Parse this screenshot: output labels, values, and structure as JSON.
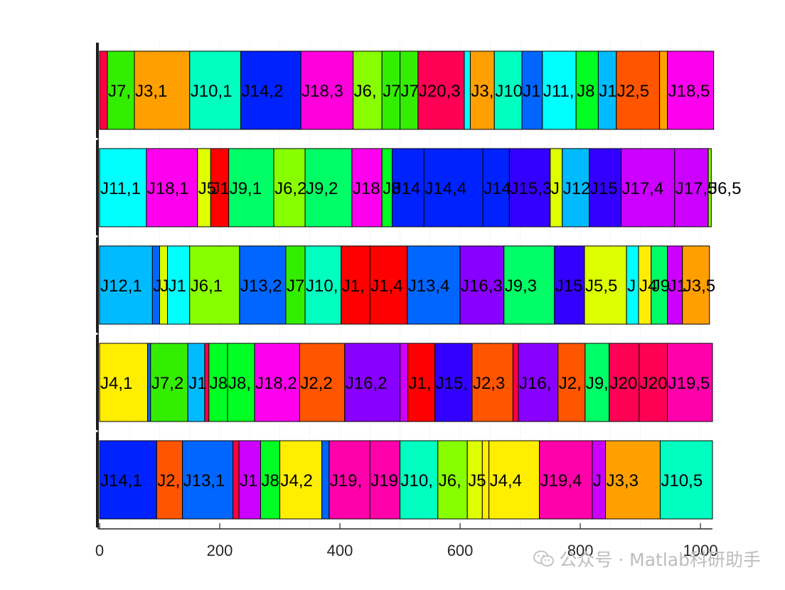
{
  "chart_data": {
    "type": "gantt",
    "xlim": [
      0,
      1020
    ],
    "x_ticks": [
      0,
      200,
      400,
      600,
      800,
      1000
    ],
    "x_tick_labels": [
      "0",
      "200",
      "400",
      "600",
      "800",
      "1000"
    ],
    "rows": [
      {
        "index": 1,
        "tasks": [
          {
            "label": "",
            "start": 0,
            "end": 13,
            "color": "#ff0044"
          },
          {
            "label": "J7,",
            "start": 13,
            "end": 58,
            "color": "#33ee00"
          },
          {
            "label": "J3,1",
            "start": 58,
            "end": 150,
            "color": "#ffa000"
          },
          {
            "label": "J10,1",
            "start": 150,
            "end": 235,
            "color": "#00ffc0"
          },
          {
            "label": "J14,2",
            "start": 235,
            "end": 335,
            "color": "#0022ff"
          },
          {
            "label": "J18,3",
            "start": 335,
            "end": 422,
            "color": "#ff00dd"
          },
          {
            "label": "J6,",
            "start": 422,
            "end": 470,
            "color": "#88ff00"
          },
          {
            "label": "J7",
            "start": 470,
            "end": 500,
            "color": "#33ee00"
          },
          {
            "label": "J7",
            "start": 500,
            "end": 530,
            "color": "#33ee00"
          },
          {
            "label": "J20,3",
            "start": 530,
            "end": 607,
            "color": "#ff0055"
          },
          {
            "label": "",
            "start": 607,
            "end": 617,
            "color": "#00ffff"
          },
          {
            "label": "J3,",
            "start": 617,
            "end": 657,
            "color": "#ffa000"
          },
          {
            "label": "J10",
            "start": 657,
            "end": 703,
            "color": "#00ffc0"
          },
          {
            "label": "J1",
            "start": 703,
            "end": 737,
            "color": "#0066ff"
          },
          {
            "label": "J11,",
            "start": 737,
            "end": 793,
            "color": "#00ffff"
          },
          {
            "label": "J8",
            "start": 793,
            "end": 830,
            "color": "#00ff22"
          },
          {
            "label": "J1",
            "start": 830,
            "end": 860,
            "color": "#00bbff"
          },
          {
            "label": "J2,5",
            "start": 860,
            "end": 932,
            "color": "#ff5500"
          },
          {
            "label": "",
            "start": 932,
            "end": 945,
            "color": "#ffa000"
          },
          {
            "label": "J18,5",
            "start": 945,
            "end": 1022,
            "color": "#ff00ee"
          }
        ]
      },
      {
        "index": 2,
        "tasks": [
          {
            "label": "J11,1",
            "start": 0,
            "end": 78,
            "color": "#00ffff"
          },
          {
            "label": "J18,1",
            "start": 78,
            "end": 163,
            "color": "#ff00ee"
          },
          {
            "label": "J5",
            "start": 163,
            "end": 185,
            "color": "#ddff00"
          },
          {
            "label": "J1",
            "start": 185,
            "end": 215,
            "color": "#ff0000"
          },
          {
            "label": "J9,1",
            "start": 215,
            "end": 290,
            "color": "#00ff66"
          },
          {
            "label": "J6,2",
            "start": 290,
            "end": 342,
            "color": "#88ff00"
          },
          {
            "label": "J9,2",
            "start": 342,
            "end": 420,
            "color": "#00ff66"
          },
          {
            "label": "J18",
            "start": 420,
            "end": 470,
            "color": "#ff00ee"
          },
          {
            "label": "J8",
            "start": 470,
            "end": 487,
            "color": "#00ff22"
          },
          {
            "label": "J14",
            "start": 487,
            "end": 540,
            "color": "#0022ff"
          },
          {
            "label": "J14,4",
            "start": 540,
            "end": 638,
            "color": "#0022ff"
          },
          {
            "label": "J14",
            "start": 638,
            "end": 682,
            "color": "#0022ff"
          },
          {
            "label": "J15,3",
            "start": 682,
            "end": 750,
            "color": "#3300ff"
          },
          {
            "label": "J",
            "start": 750,
            "end": 770,
            "color": "#ddff00"
          },
          {
            "label": "J12",
            "start": 770,
            "end": 815,
            "color": "#00bbff"
          },
          {
            "label": "J15",
            "start": 815,
            "end": 868,
            "color": "#3300ff"
          },
          {
            "label": "J17,4",
            "start": 868,
            "end": 957,
            "color": "#cc00ff"
          },
          {
            "label": "J17,5",
            "start": 957,
            "end": 1013,
            "color": "#cc00ff"
          },
          {
            "label": "J6,5",
            "start": 1013,
            "end": 1018,
            "color": "#88ff00"
          }
        ]
      },
      {
        "index": 3,
        "tasks": [
          {
            "label": "J12,1",
            "start": 0,
            "end": 88,
            "color": "#00bbff"
          },
          {
            "label": "J",
            "start": 88,
            "end": 100,
            "color": "#0066ff"
          },
          {
            "label": "J",
            "start": 100,
            "end": 113,
            "color": "#ddff00"
          },
          {
            "label": "J1",
            "start": 113,
            "end": 150,
            "color": "#00ffff"
          },
          {
            "label": "J6,1",
            "start": 150,
            "end": 233,
            "color": "#88ff00"
          },
          {
            "label": "J13,2",
            "start": 233,
            "end": 310,
            "color": "#0066ff"
          },
          {
            "label": "J7",
            "start": 310,
            "end": 342,
            "color": "#33ee00"
          },
          {
            "label": "J10,",
            "start": 342,
            "end": 402,
            "color": "#00ffc0"
          },
          {
            "label": "J1,",
            "start": 402,
            "end": 450,
            "color": "#ff0000"
          },
          {
            "label": "J1,4",
            "start": 450,
            "end": 512,
            "color": "#ff0000"
          },
          {
            "label": "J13,4",
            "start": 512,
            "end": 600,
            "color": "#0066ff"
          },
          {
            "label": "J16,3",
            "start": 600,
            "end": 673,
            "color": "#8800ff"
          },
          {
            "label": "J9,3",
            "start": 673,
            "end": 757,
            "color": "#00ff66"
          },
          {
            "label": "J15",
            "start": 757,
            "end": 807,
            "color": "#3300ff"
          },
          {
            "label": "J5,5",
            "start": 807,
            "end": 877,
            "color": "#ddff00"
          },
          {
            "label": "J",
            "start": 877,
            "end": 897,
            "color": "#00ffff"
          },
          {
            "label": "J4",
            "start": 897,
            "end": 918,
            "color": "#ffee00"
          },
          {
            "label": "J9",
            "start": 918,
            "end": 945,
            "color": "#00ff66"
          },
          {
            "label": "J1",
            "start": 945,
            "end": 970,
            "color": "#cc00ff"
          },
          {
            "label": "J3,5",
            "start": 970,
            "end": 1015,
            "color": "#ffa000"
          }
        ]
      },
      {
        "index": 4,
        "tasks": [
          {
            "label": "J4,1",
            "start": 0,
            "end": 80,
            "color": "#ffee00"
          },
          {
            "label": "",
            "start": 80,
            "end": 85,
            "color": "#0066ff"
          },
          {
            "label": "J7,2",
            "start": 85,
            "end": 147,
            "color": "#33ee00"
          },
          {
            "label": "J1",
            "start": 147,
            "end": 175,
            "color": "#00bbff"
          },
          {
            "label": "",
            "start": 175,
            "end": 182,
            "color": "#ff0044"
          },
          {
            "label": "J8",
            "start": 182,
            "end": 213,
            "color": "#00ff22"
          },
          {
            "label": "J8,",
            "start": 213,
            "end": 258,
            "color": "#00ff22"
          },
          {
            "label": "J18,2",
            "start": 258,
            "end": 333,
            "color": "#ff00ee"
          },
          {
            "label": "J2,2",
            "start": 333,
            "end": 408,
            "color": "#ff5500"
          },
          {
            "label": "J16,2",
            "start": 408,
            "end": 500,
            "color": "#8800ff"
          },
          {
            "label": "",
            "start": 500,
            "end": 513,
            "color": "#cc00ff"
          },
          {
            "label": "J1,",
            "start": 513,
            "end": 558,
            "color": "#ff0000"
          },
          {
            "label": "J15,",
            "start": 558,
            "end": 620,
            "color": "#3300ff"
          },
          {
            "label": "J2,3",
            "start": 620,
            "end": 688,
            "color": "#ff5500"
          },
          {
            "label": "",
            "start": 688,
            "end": 697,
            "color": "#ff0044"
          },
          {
            "label": "J16,",
            "start": 697,
            "end": 763,
            "color": "#8800ff"
          },
          {
            "label": "J2,",
            "start": 763,
            "end": 808,
            "color": "#ff5500"
          },
          {
            "label": "J9,",
            "start": 808,
            "end": 848,
            "color": "#00ff66"
          },
          {
            "label": "J20",
            "start": 848,
            "end": 898,
            "color": "#ff0055"
          },
          {
            "label": "J20",
            "start": 898,
            "end": 945,
            "color": "#ff0055"
          },
          {
            "label": "J19,5",
            "start": 945,
            "end": 1020,
            "color": "#ff00aa"
          }
        ]
      },
      {
        "index": 5,
        "tasks": [
          {
            "label": "J14,1",
            "start": 0,
            "end": 95,
            "color": "#0022ff"
          },
          {
            "label": "J2,",
            "start": 95,
            "end": 138,
            "color": "#ff5500"
          },
          {
            "label": "J13,1",
            "start": 138,
            "end": 222,
            "color": "#0066ff"
          },
          {
            "label": "",
            "start": 222,
            "end": 232,
            "color": "#ff0044"
          },
          {
            "label": "J1",
            "start": 232,
            "end": 268,
            "color": "#cc00ff"
          },
          {
            "label": "J8",
            "start": 268,
            "end": 300,
            "color": "#00ff22"
          },
          {
            "label": "J4,2",
            "start": 300,
            "end": 370,
            "color": "#ffee00"
          },
          {
            "label": "",
            "start": 370,
            "end": 382,
            "color": "#0066ff"
          },
          {
            "label": "J19,",
            "start": 382,
            "end": 450,
            "color": "#ff00aa"
          },
          {
            "label": "J19",
            "start": 450,
            "end": 500,
            "color": "#ff00aa"
          },
          {
            "label": "J10,",
            "start": 500,
            "end": 563,
            "color": "#00ffc0"
          },
          {
            "label": "J6,",
            "start": 563,
            "end": 612,
            "color": "#88ff00"
          },
          {
            "label": "J5",
            "start": 612,
            "end": 637,
            "color": "#ddff00"
          },
          {
            "label": "",
            "start": 637,
            "end": 648,
            "color": "#ffee00"
          },
          {
            "label": "J4,4",
            "start": 648,
            "end": 732,
            "color": "#ffee00"
          },
          {
            "label": "J19,4",
            "start": 732,
            "end": 820,
            "color": "#ff00aa"
          },
          {
            "label": "J",
            "start": 820,
            "end": 842,
            "color": "#cc00ff"
          },
          {
            "label": "J3,3",
            "start": 842,
            "end": 933,
            "color": "#ffa000"
          },
          {
            "label": "J10,5",
            "start": 933,
            "end": 1020,
            "color": "#00ffc0"
          }
        ]
      }
    ]
  },
  "watermark": {
    "text": "公众号 · Matlab科研助手",
    "icon": "wechat-icon"
  }
}
